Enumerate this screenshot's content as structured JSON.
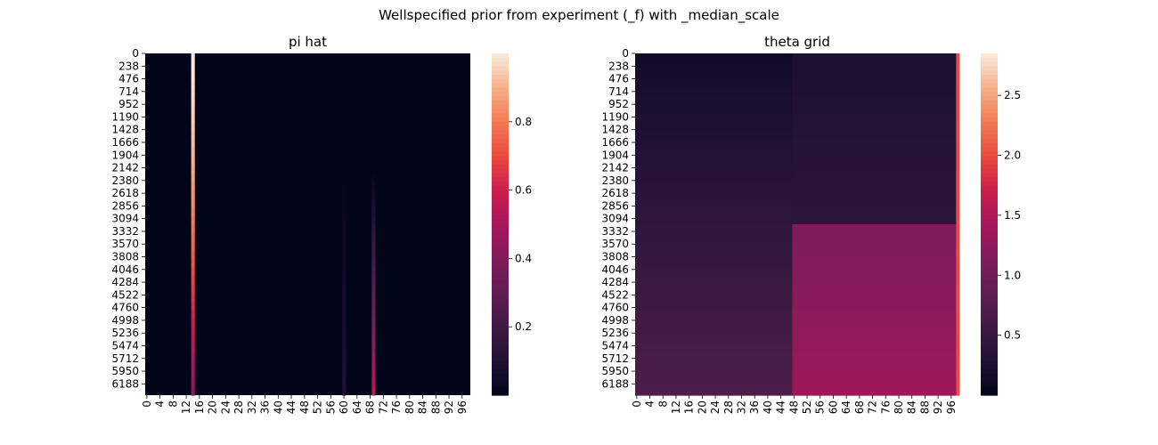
{
  "figure": {
    "suptitle": "Wellspecified prior from experiment (_f) with _median_scale"
  },
  "chart_data": [
    {
      "type": "heatmap",
      "title": "pi hat",
      "xlabel": "",
      "ylabel": "",
      "x_ticks": [
        "0",
        "4",
        "8",
        "12",
        "16",
        "20",
        "24",
        "28",
        "32",
        "36",
        "40",
        "44",
        "48",
        "52",
        "56",
        "60",
        "64",
        "68",
        "72",
        "76",
        "80",
        "84",
        "88",
        "92",
        "96"
      ],
      "y_ticks": [
        "0",
        "238",
        "476",
        "714",
        "952",
        "1190",
        "1428",
        "1666",
        "1904",
        "2142",
        "2380",
        "2618",
        "2856",
        "3094",
        "3332",
        "3570",
        "3808",
        "4046",
        "4284",
        "4522",
        "4760",
        "4998",
        "5236",
        "5474",
        "5712",
        "5950",
        "6188"
      ],
      "n_cols": 99,
      "n_rows": 6400,
      "colorbar": {
        "ticks": [
          0.2,
          0.4,
          0.6,
          0.8
        ],
        "tick_labels": [
          "0.2",
          "0.4",
          "0.6",
          "0.8"
        ],
        "vmin": 0.0,
        "vmax": 1.0,
        "colormap": "rocket"
      },
      "features": {
        "background_value": 0.0,
        "high_column": {
          "col": 14,
          "value_top": 1.0,
          "value_bottom": 0.42
        },
        "faint_columns": [
          {
            "col": 60,
            "value_max": 0.08
          },
          {
            "col": 69,
            "value_max": 0.42
          }
        ]
      }
    },
    {
      "type": "heatmap",
      "title": "theta grid",
      "xlabel": "",
      "ylabel": "",
      "x_ticks": [
        "0",
        "4",
        "8",
        "12",
        "16",
        "20",
        "24",
        "28",
        "32",
        "36",
        "40",
        "44",
        "48",
        "52",
        "56",
        "60",
        "64",
        "68",
        "72",
        "76",
        "80",
        "84",
        "88",
        "92",
        "96"
      ],
      "y_ticks": [
        "0",
        "238",
        "476",
        "714",
        "952",
        "1190",
        "1428",
        "1666",
        "1904",
        "2142",
        "2380",
        "2618",
        "2856",
        "3094",
        "3332",
        "3570",
        "3808",
        "4046",
        "4284",
        "4522",
        "4760",
        "4998",
        "5236",
        "5474",
        "5712",
        "5950",
        "6188"
      ],
      "n_cols": 99,
      "n_rows": 6400,
      "colorbar": {
        "ticks": [
          0.5,
          1.0,
          1.5,
          2.0,
          2.5
        ],
        "tick_labels": [
          "0.5",
          "1.0",
          "1.5",
          "2.0",
          "2.5"
        ],
        "vmin": 0.0,
        "vmax": 2.85,
        "colormap": "rocket"
      },
      "features": {
        "left_block": {
          "cols": [
            0,
            47
          ],
          "value_top": 0.15,
          "value_bottom": 0.7
        },
        "right_block": {
          "cols": [
            48,
            97
          ],
          "value_top": 0.25,
          "value_mid": 0.4,
          "value_after_jump": 1.1,
          "value_bottom": 1.35,
          "jump_row": 3200
        },
        "last_column": {
          "col": 98,
          "value": 2.0
        }
      }
    }
  ]
}
